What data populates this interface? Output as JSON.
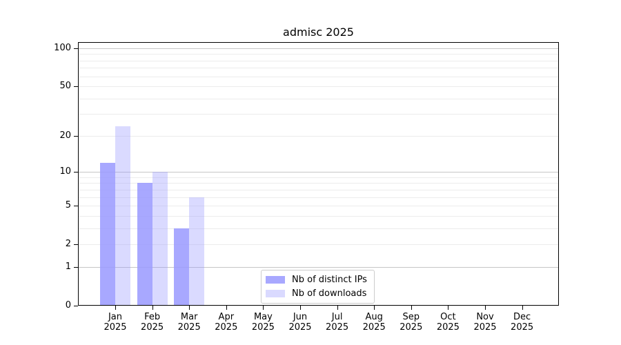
{
  "chart_data": {
    "type": "bar",
    "title": "admisc 2025",
    "x_months": [
      "Jan",
      "Feb",
      "Mar",
      "Apr",
      "May",
      "Jun",
      "Jul",
      "Aug",
      "Sep",
      "Oct",
      "Nov",
      "Dec"
    ],
    "x_year": "2025",
    "y_ticks": [
      0,
      1,
      2,
      5,
      10,
      20,
      50,
      100
    ],
    "y_scale": "log10(1+value)",
    "ylim": [
      0,
      112
    ],
    "grid": {
      "major": [
        1,
        10,
        100
      ],
      "minor": [
        2,
        3,
        4,
        5,
        6,
        7,
        8,
        9,
        20,
        30,
        40,
        50,
        60,
        70,
        80,
        90
      ]
    },
    "series": [
      {
        "name": "Nb of distinct IPs",
        "color": "rgba(153,153,255,0.85)",
        "values": [
          12,
          8,
          3,
          0,
          0,
          0,
          0,
          0,
          0,
          0,
          0,
          0
        ]
      },
      {
        "name": "Nb of downloads",
        "color": "rgba(153,153,255,0.36)",
        "values": [
          24,
          10,
          6,
          0,
          0,
          0,
          0,
          0,
          0,
          0,
          0,
          0
        ]
      }
    ],
    "legend_position": "bottom-center-inside"
  },
  "colors": {
    "background": "#ffffff",
    "axis": "#000000",
    "grid_major": "#c6c6c6",
    "grid_minor": "#ececec",
    "legend_border": "#cccccc",
    "bar_primary_flat": "#a8a8f5",
    "bar_secondary_flat": "#dadaf8"
  }
}
